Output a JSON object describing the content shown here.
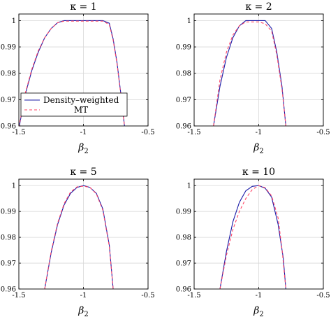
{
  "figure": {
    "x_tick_labels": [
      "-1.5",
      "-1",
      "-0.5"
    ],
    "y_tick_labels": [
      "0.96",
      "0.97",
      "0.98",
      "0.99",
      "1"
    ]
  },
  "colors": {
    "density_weighted": "#1a1aa6",
    "mt": "#ff4466",
    "axis": "#000000",
    "grid": "#d9d9d9"
  },
  "chart_data": [
    {
      "type": "line",
      "title": "κ = 1",
      "xlabel": "β2",
      "ylabel": "",
      "xlim": [
        -1.5,
        -0.5
      ],
      "ylim": [
        0.96,
        1.0025
      ],
      "grid": true,
      "legend": "lower-left",
      "series": [
        {
          "name": "Density–weighted",
          "x": [
            -1.5,
            -1.45,
            -1.4,
            -1.35,
            -1.3,
            -1.25,
            -1.2,
            -1.15,
            -1.1,
            -1.05,
            -1.0,
            -0.95,
            -0.9,
            -0.85,
            -0.8,
            -0.77,
            -0.74,
            -0.71,
            -0.68
          ],
          "y": [
            0.959,
            0.972,
            0.981,
            0.988,
            0.9935,
            0.997,
            0.9992,
            1.0,
            1.0,
            1.0,
            1.0,
            1.0,
            1.0,
            1.0,
            0.999,
            0.993,
            0.984,
            0.972,
            0.959
          ]
        },
        {
          "name": "MT",
          "x": [
            -1.5,
            -1.45,
            -1.4,
            -1.35,
            -1.3,
            -1.25,
            -1.2,
            -1.15,
            -1.1,
            -1.05,
            -1.0,
            -0.95,
            -0.9,
            -0.85,
            -0.8,
            -0.77,
            -0.74,
            -0.71,
            -0.68
          ],
          "y": [
            0.9595,
            0.9725,
            0.9815,
            0.9885,
            0.9935,
            0.997,
            0.9992,
            0.9998,
            0.9998,
            0.9998,
            0.9998,
            0.9998,
            0.9998,
            0.9998,
            0.9985,
            0.9925,
            0.9835,
            0.9715,
            0.959
          ]
        }
      ]
    },
    {
      "type": "line",
      "title": "κ = 2",
      "xlabel": "β2",
      "ylabel": "",
      "xlim": [
        -1.5,
        -0.5
      ],
      "ylim": [
        0.96,
        1.0025
      ],
      "grid": true,
      "series": [
        {
          "name": "Density–weighted",
          "x": [
            -1.35,
            -1.3,
            -1.25,
            -1.2,
            -1.15,
            -1.1,
            -1.05,
            -1.0,
            -0.95,
            -0.9,
            -0.86,
            -0.82,
            -0.79
          ],
          "y": [
            0.96,
            0.975,
            0.986,
            0.9935,
            0.998,
            1.0,
            1.0,
            1.0,
            1.0,
            0.997,
            0.988,
            0.975,
            0.96
          ]
        },
        {
          "name": "MT",
          "x": [
            -1.35,
            -1.3,
            -1.25,
            -1.2,
            -1.15,
            -1.1,
            -1.05,
            -1.0,
            -0.95,
            -0.9,
            -0.86,
            -0.82,
            -0.79
          ],
          "y": [
            0.96,
            0.9775,
            0.988,
            0.9945,
            0.998,
            0.9995,
            0.9995,
            0.9995,
            0.9988,
            0.996,
            0.987,
            0.974,
            0.96
          ]
        }
      ]
    },
    {
      "type": "line",
      "title": "κ = 5",
      "xlabel": "β2",
      "ylabel": "",
      "xlim": [
        -1.5,
        -0.5
      ],
      "ylim": [
        0.96,
        1.0025
      ],
      "grid": true,
      "series": [
        {
          "name": "Density–weighted",
          "x": [
            -1.3,
            -1.25,
            -1.2,
            -1.15,
            -1.1,
            -1.05,
            -1.0,
            -0.95,
            -0.9,
            -0.85,
            -0.8,
            -0.77
          ],
          "y": [
            0.96,
            0.974,
            0.985,
            0.9925,
            0.997,
            0.9993,
            1.0,
            0.9993,
            0.997,
            0.991,
            0.977,
            0.96
          ]
        },
        {
          "name": "MT",
          "x": [
            -1.3,
            -1.25,
            -1.2,
            -1.15,
            -1.1,
            -1.05,
            -1.0,
            -0.95,
            -0.9,
            -0.85,
            -0.8,
            -0.77
          ],
          "y": [
            0.96,
            0.9745,
            0.9855,
            0.993,
            0.9975,
            0.9995,
            0.9998,
            0.9993,
            0.9968,
            0.9905,
            0.9765,
            0.96
          ]
        }
      ]
    },
    {
      "type": "line",
      "title": "κ = 10",
      "xlabel": "β2",
      "ylabel": "",
      "xlim": [
        -1.5,
        -0.5
      ],
      "ylim": [
        0.96,
        1.0025
      ],
      "grid": true,
      "series": [
        {
          "name": "Density–weighted",
          "x": [
            -1.3,
            -1.25,
            -1.2,
            -1.15,
            -1.1,
            -1.05,
            -1.0,
            -0.95,
            -0.9,
            -0.85,
            -0.81,
            -0.79
          ],
          "y": [
            0.96,
            0.9745,
            0.986,
            0.9935,
            0.998,
            0.9997,
            1.0,
            0.999,
            0.9955,
            0.985,
            0.972,
            0.96
          ]
        },
        {
          "name": "MT",
          "x": [
            -1.3,
            -1.25,
            -1.2,
            -1.15,
            -1.1,
            -1.05,
            -1.0,
            -0.95,
            -0.9,
            -0.85,
            -0.82,
            -0.79
          ],
          "y": [
            0.96,
            0.973,
            0.983,
            0.99,
            0.995,
            0.9985,
            1.0,
            0.9992,
            0.996,
            0.9875,
            0.9755,
            0.96
          ]
        }
      ]
    }
  ]
}
